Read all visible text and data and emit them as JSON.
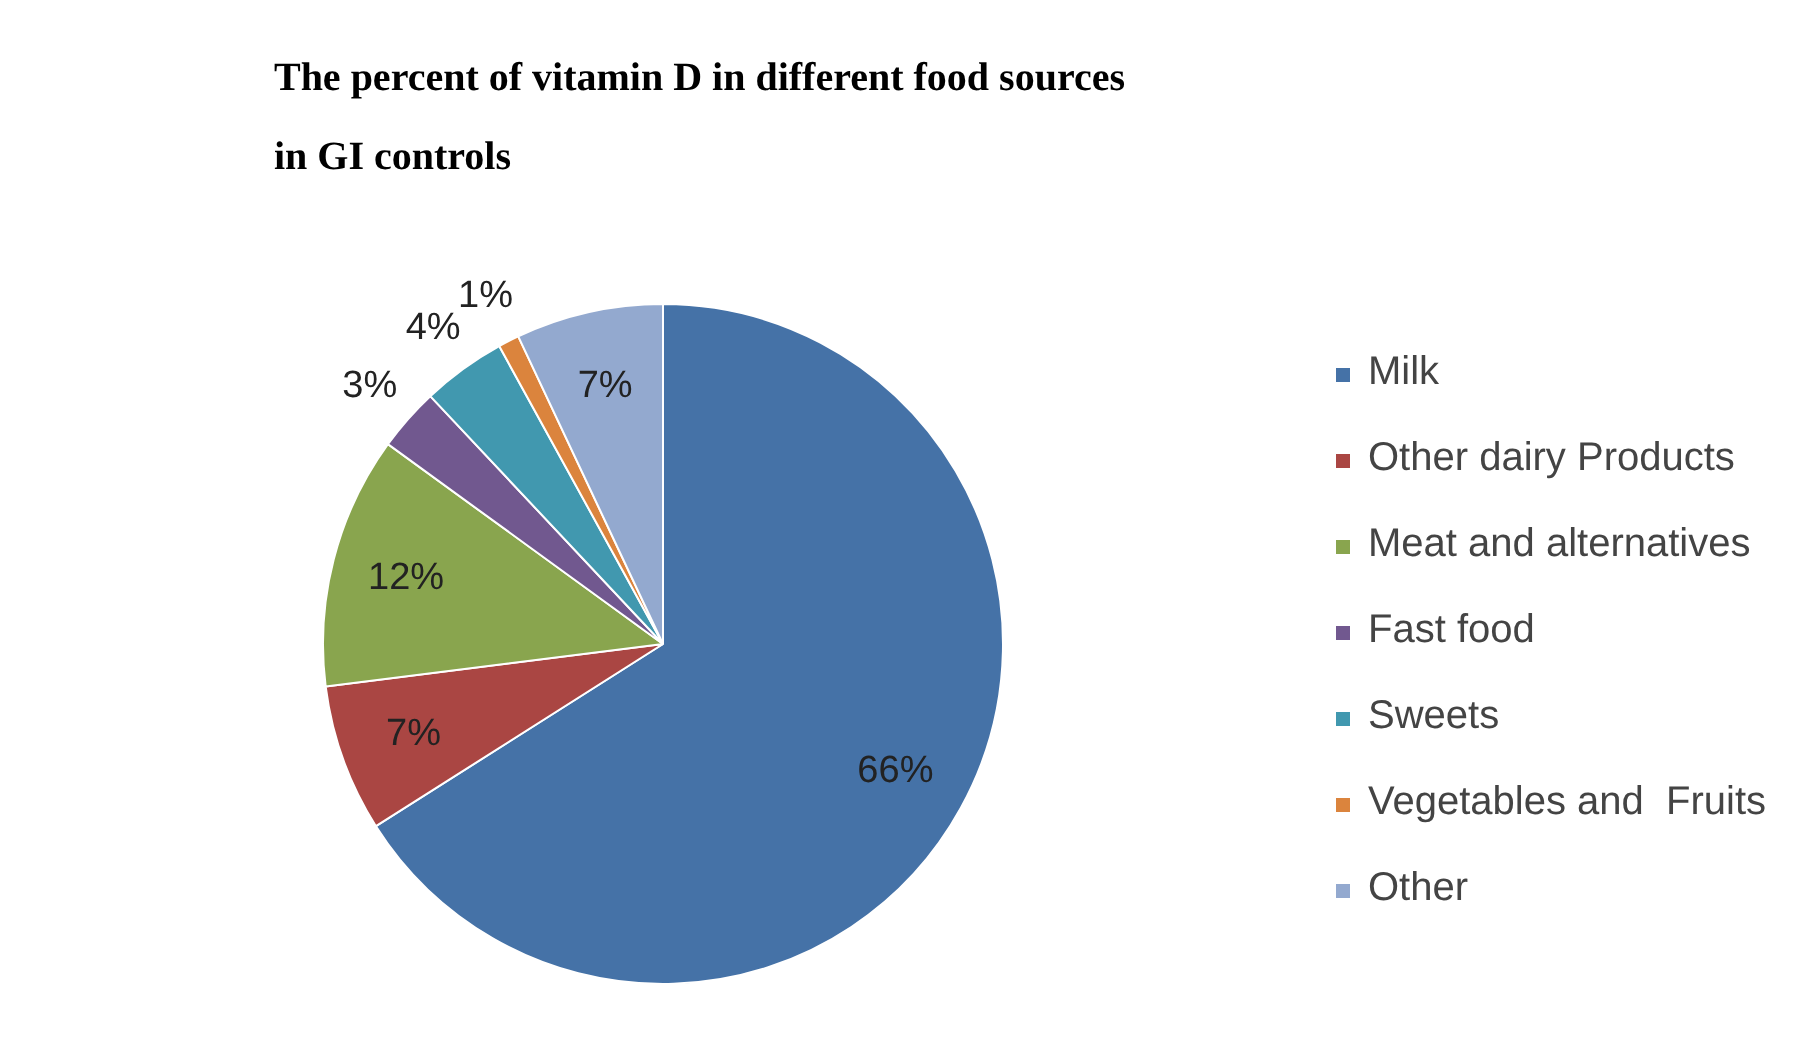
{
  "chart_data": {
    "type": "pie",
    "title": "The percent of vitamin D in different food sources\nin GI controls",
    "categories": [
      "Milk",
      "Other dairy Products",
      "Meat and alternatives",
      "Fast food",
      "Sweets",
      "Vegetables and  Fruits",
      "Other"
    ],
    "values": [
      66,
      7,
      12,
      3,
      4,
      1,
      7
    ],
    "value_labels": [
      "66%",
      "7%",
      "12%",
      "3%",
      "4%",
      "1%",
      "7%"
    ],
    "colors": [
      "#4572a7",
      "#aa4643",
      "#89a54e",
      "#71588f",
      "#4198af",
      "#db843d",
      "#93a9cf"
    ],
    "legend": "right"
  }
}
